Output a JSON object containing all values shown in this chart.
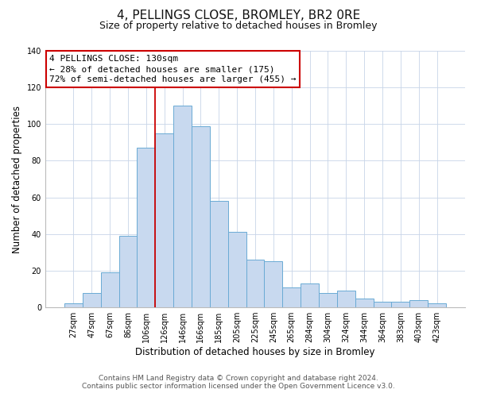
{
  "title": "4, PELLINGS CLOSE, BROMLEY, BR2 0RE",
  "subtitle": "Size of property relative to detached houses in Bromley",
  "xlabel": "Distribution of detached houses by size in Bromley",
  "ylabel": "Number of detached properties",
  "categories": [
    "27sqm",
    "47sqm",
    "67sqm",
    "86sqm",
    "106sqm",
    "126sqm",
    "146sqm",
    "166sqm",
    "185sqm",
    "205sqm",
    "225sqm",
    "245sqm",
    "265sqm",
    "284sqm",
    "304sqm",
    "324sqm",
    "344sqm",
    "364sqm",
    "383sqm",
    "403sqm",
    "423sqm"
  ],
  "values": [
    2,
    8,
    19,
    39,
    87,
    95,
    110,
    99,
    58,
    41,
    26,
    25,
    11,
    13,
    8,
    9,
    5,
    3,
    3,
    4,
    2
  ],
  "bar_color": "#c8d9ef",
  "bar_edge_color": "#6aaad4",
  "bar_edge_width": 0.7,
  "vline_x_index": 5,
  "vline_color": "#cc0000",
  "ylim": [
    0,
    140
  ],
  "yticks": [
    0,
    20,
    40,
    60,
    80,
    100,
    120,
    140
  ],
  "annotation_line1": "4 PELLINGS CLOSE: 130sqm",
  "annotation_line2": "← 28% of detached houses are smaller (175)",
  "annotation_line3": "72% of semi-detached houses are larger (455) →",
  "annotation_box_facecolor": "#ffffff",
  "annotation_box_edgecolor": "#cc0000",
  "footer_line1": "Contains HM Land Registry data © Crown copyright and database right 2024.",
  "footer_line2": "Contains public sector information licensed under the Open Government Licence v3.0.",
  "background_color": "#ffffff",
  "grid_color": "#c8d4e8",
  "title_fontsize": 11,
  "subtitle_fontsize": 9,
  "axis_label_fontsize": 8.5,
  "tick_fontsize": 7,
  "annotation_fontsize": 8,
  "footer_fontsize": 6.5
}
